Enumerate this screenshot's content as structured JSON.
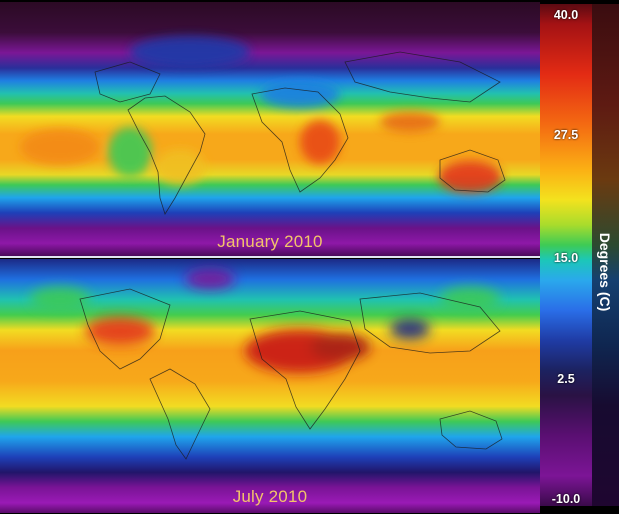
{
  "panels": [
    {
      "label": "January 2010"
    },
    {
      "label": "July 2010"
    }
  ],
  "legend": {
    "title": "Degrees (C)",
    "ticks": [
      "40.0",
      "27.5",
      "15.0",
      "2.5",
      "-10.0"
    ],
    "range": [
      -10.0,
      40.0
    ]
  },
  "colors": {
    "label_text": "#f2c46a",
    "hot": "#d41a14",
    "warm": "#f7a01c",
    "mild": "#3ecb55",
    "cool": "#2a8ee8",
    "cold": "#1c2260",
    "frigid": "#7c1596"
  }
}
